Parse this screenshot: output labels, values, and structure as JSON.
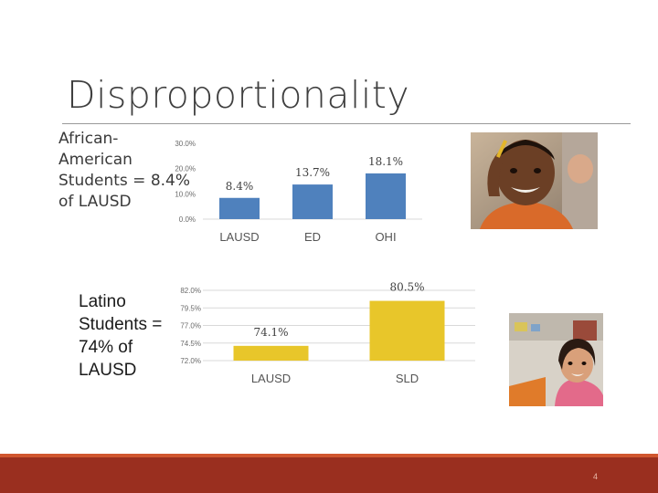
{
  "slide": {
    "title": "Disproportionality",
    "african_american_text": "African-\nAmerican\nStudents = 8.4%\nof LAUSD",
    "latino_text": "Latino\nStudents =\n74% of\nLAUSD",
    "page_number": "4"
  },
  "colors": {
    "bar_blue": "#4f81bd",
    "bar_yellow": "#e8c62a",
    "footer": "#9a2f1f",
    "footer_accent": "#d0562f"
  },
  "icons": {
    "photo1": "smiling-boy-photo",
    "photo2": "smiling-girl-photo"
  },
  "chart_data": [
    {
      "type": "bar",
      "categories": [
        "LAUSD",
        "ED",
        "OHI"
      ],
      "values": [
        8.4,
        13.7,
        18.1
      ],
      "data_labels": [
        "8.4%",
        "13.7%",
        "18.1%"
      ],
      "yticks": [
        0,
        10,
        20,
        30
      ],
      "ytick_labels": [
        "0.0%",
        "10.0%",
        "20.0%",
        "30.0%"
      ],
      "ylim": [
        0,
        30
      ],
      "grid": false,
      "color": "#4f81bd"
    },
    {
      "type": "bar",
      "categories": [
        "LAUSD",
        "SLD"
      ],
      "values": [
        74.1,
        80.5
      ],
      "data_labels": [
        "74.1%",
        "80.5%"
      ],
      "yticks": [
        72,
        74.5,
        77,
        79.5,
        82
      ],
      "ytick_labels": [
        "72.0%",
        "74.5%",
        "77.0%",
        "79.5%",
        "82.0%"
      ],
      "ylim": [
        72,
        82
      ],
      "grid": true,
      "color": "#e8c62a"
    }
  ]
}
